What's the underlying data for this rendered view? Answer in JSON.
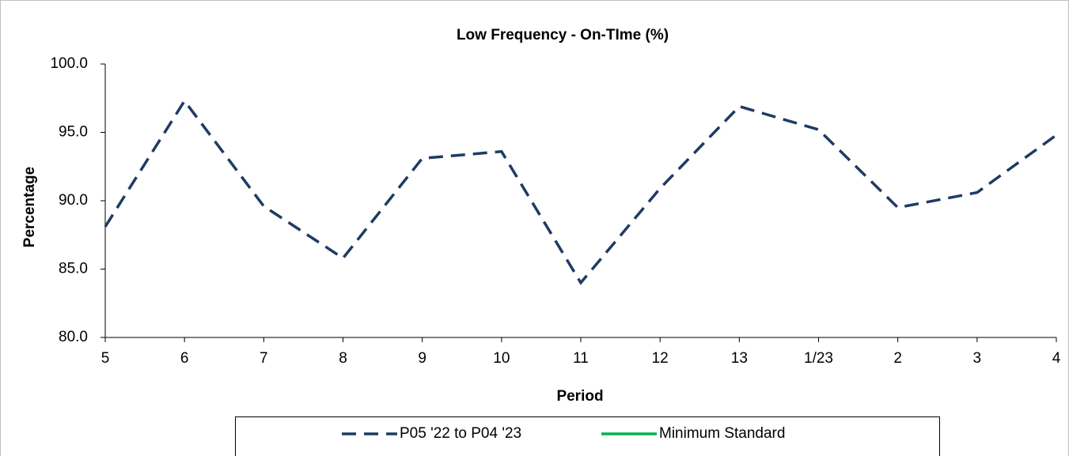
{
  "chart_data": {
    "type": "line",
    "title": "Low Frequency - On-TIme (%)",
    "x_label": "Period",
    "y_label": "Percentage",
    "categories": [
      "5",
      "6",
      "7",
      "8",
      "9",
      "10",
      "11",
      "12",
      "13",
      "1/23",
      "2",
      "3",
      "4"
    ],
    "series": [
      {
        "name": "P05 '22 to P04 '23",
        "color": "#1f3b64",
        "values": [
          88.1,
          97.3,
          89.6,
          85.8,
          93.1,
          93.6,
          84.0,
          90.9,
          96.9,
          95.2,
          89.5,
          90.6,
          94.8
        ]
      },
      {
        "name": "Minimum Standard",
        "color": "#00b050",
        "values": [
          null,
          null,
          null,
          null,
          null,
          null,
          null,
          null,
          null,
          null,
          null,
          null,
          null
        ]
      }
    ],
    "ylim": [
      80,
      100
    ],
    "yticks": [
      {
        "value": 80,
        "label": "80.0"
      },
      {
        "value": 85,
        "label": "85.0"
      },
      {
        "value": 90,
        "label": "90.0"
      },
      {
        "value": 95,
        "label": "95.0"
      },
      {
        "value": 100,
        "label": "100.0"
      }
    ]
  }
}
